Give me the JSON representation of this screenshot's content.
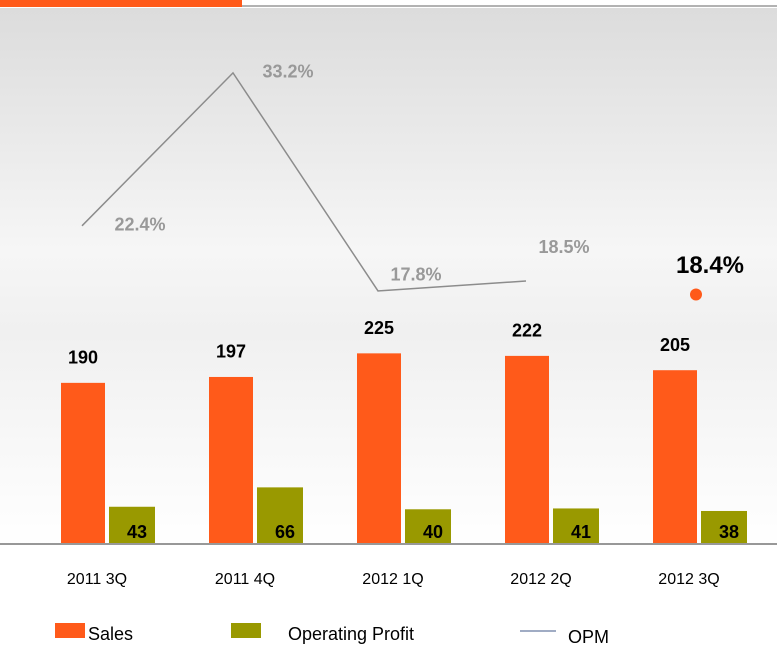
{
  "chart_data": {
    "type": "bar_line",
    "categories": [
      "2011 3Q",
      "2011 4Q",
      "2012 1Q",
      "2012 2Q",
      "2012 3Q"
    ],
    "series": [
      {
        "name": "Sales",
        "color": "#ff5a1a",
        "values": [
          190,
          197,
          225,
          222,
          205
        ]
      },
      {
        "name": "Operating Profit",
        "color": "#999900",
        "values": [
          43,
          66,
          40,
          41,
          38
        ]
      },
      {
        "name": "OPM",
        "color": "#8c8c8c",
        "axis": "y2",
        "values": [
          22.4,
          33.2,
          17.8,
          18.5,
          18.4
        ],
        "value_labels": [
          "22.4%",
          "33.2%",
          "17.8%",
          "18.5%",
          "18.4%"
        ],
        "highlight_index": 4,
        "highlight_color": "#ff5a1a"
      }
    ],
    "ylim": [
      0,
      630
    ],
    "y2lim": [
      0,
      37.5
    ]
  }
}
